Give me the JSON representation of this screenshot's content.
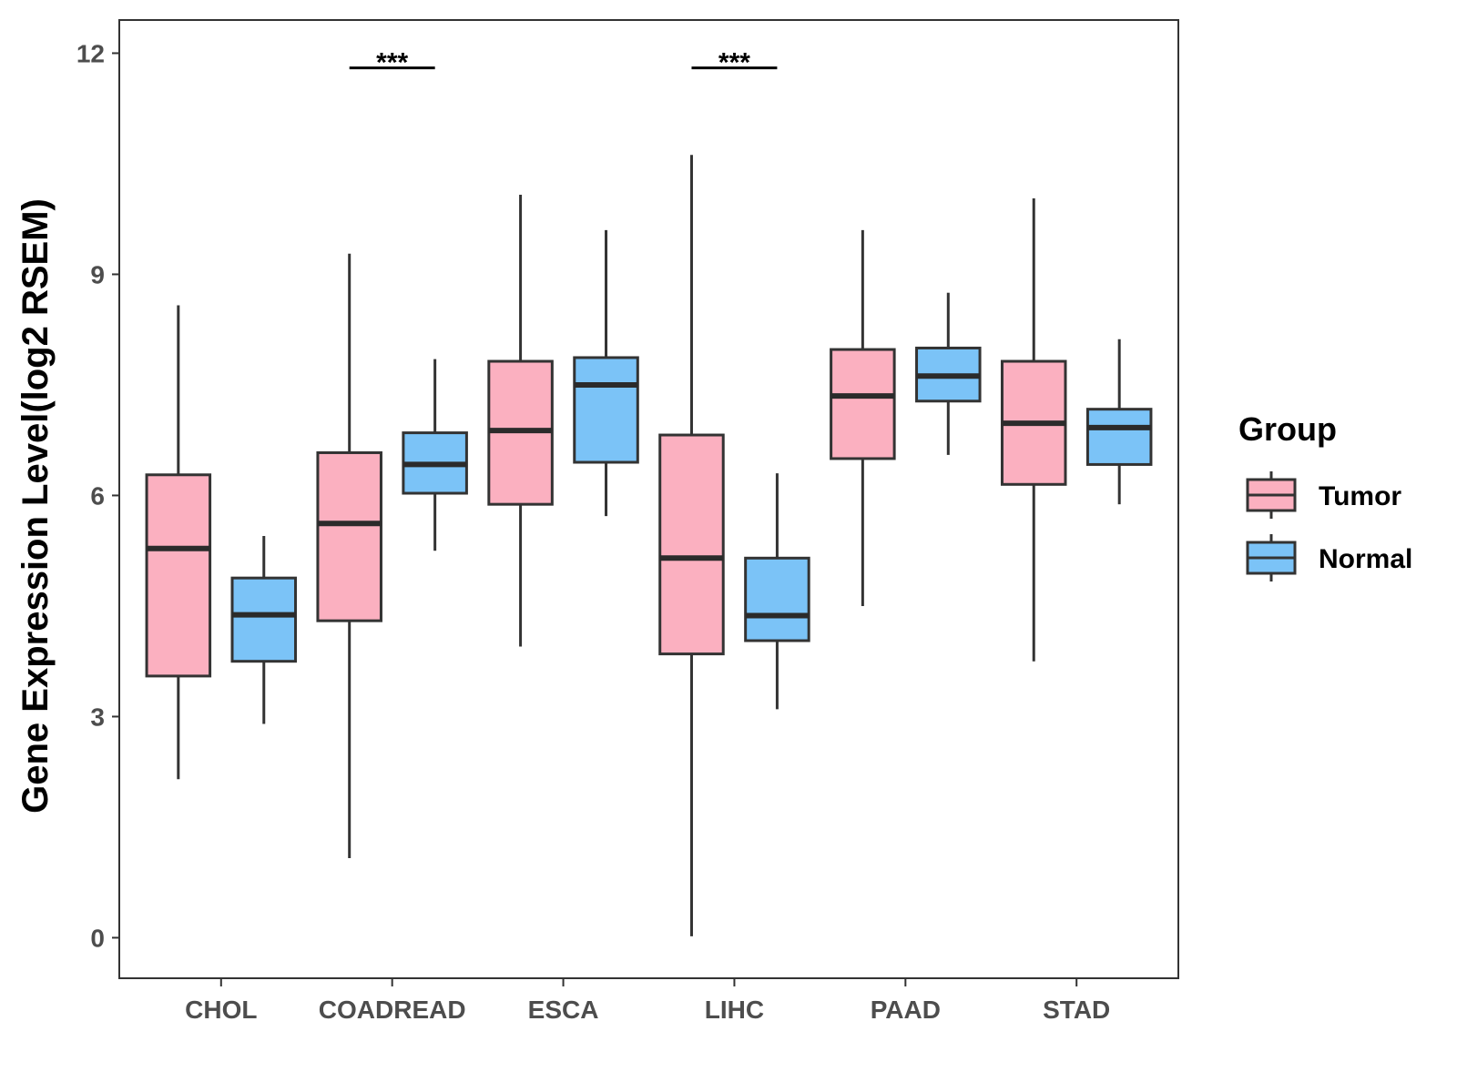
{
  "chart_data": {
    "type": "boxplot",
    "title": "",
    "xlabel": "",
    "ylabel": "Gene Expression Level(log2 RSEM)",
    "ylim": [
      -0.55,
      12.45
    ],
    "yticks": [
      0,
      3,
      6,
      9,
      12
    ],
    "ytick_labels": [
      "0",
      "3",
      "6",
      "9",
      "12"
    ],
    "categories": [
      "CHOL",
      "COADREAD",
      "ESCA",
      "LIHC",
      "PAAD",
      "STAD"
    ],
    "legend": {
      "title": "Group",
      "position": "right",
      "items": [
        {
          "label": "Tumor",
          "color": "#FBB0C0"
        },
        {
          "label": "Normal",
          "color": "#7BC3F7"
        }
      ]
    },
    "series": [
      {
        "name": "Tumor",
        "color": "#FBB0C0",
        "boxes": [
          {
            "category": "CHOL",
            "min": 2.15,
            "q1": 3.55,
            "median": 5.28,
            "q3": 6.28,
            "max": 8.58
          },
          {
            "category": "COADREAD",
            "min": 1.08,
            "q1": 4.3,
            "median": 5.62,
            "q3": 6.58,
            "max": 9.28
          },
          {
            "category": "ESCA",
            "min": 3.95,
            "q1": 5.88,
            "median": 6.88,
            "q3": 7.82,
            "max": 10.08
          },
          {
            "category": "LIHC",
            "min": 0.02,
            "q1": 3.85,
            "median": 5.15,
            "q3": 6.82,
            "max": 10.62
          },
          {
            "category": "PAAD",
            "min": 4.5,
            "q1": 6.5,
            "median": 7.35,
            "q3": 7.98,
            "max": 9.6
          },
          {
            "category": "STAD",
            "min": 3.75,
            "q1": 6.15,
            "median": 6.98,
            "q3": 7.82,
            "max": 10.03
          }
        ]
      },
      {
        "name": "Normal",
        "color": "#7BC3F7",
        "boxes": [
          {
            "category": "CHOL",
            "min": 2.9,
            "q1": 3.75,
            "median": 4.38,
            "q3": 4.88,
            "max": 5.45
          },
          {
            "category": "COADREAD",
            "min": 5.25,
            "q1": 6.03,
            "median": 6.42,
            "q3": 6.85,
            "max": 7.85
          },
          {
            "category": "ESCA",
            "min": 5.72,
            "q1": 6.45,
            "median": 7.5,
            "q3": 7.87,
            "max": 9.6
          },
          {
            "category": "LIHC",
            "min": 3.1,
            "q1": 4.03,
            "median": 4.37,
            "q3": 5.15,
            "max": 6.3
          },
          {
            "category": "PAAD",
            "min": 6.55,
            "q1": 7.28,
            "median": 7.62,
            "q3": 8.0,
            "max": 8.75
          },
          {
            "category": "STAD",
            "min": 5.88,
            "q1": 6.42,
            "median": 6.92,
            "q3": 7.17,
            "max": 8.12
          }
        ]
      }
    ],
    "annotations": [
      {
        "category": "COADREAD",
        "text": "***",
        "y": 11.8
      },
      {
        "category": "LIHC",
        "text": "***",
        "y": 11.8
      }
    ]
  }
}
